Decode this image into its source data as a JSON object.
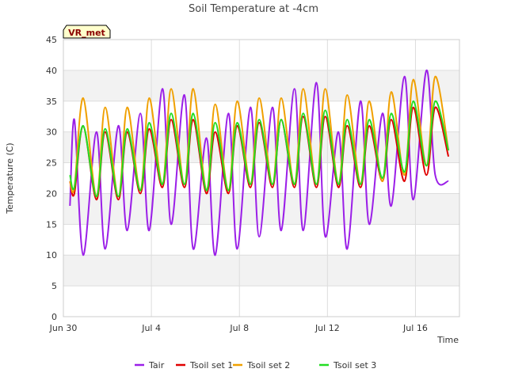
{
  "chart_data": {
    "type": "line",
    "title": "Soil Temperature at -4cm",
    "xlabel": "Time",
    "ylabel": "Temperature (C)",
    "badge": "VR_met",
    "ylim": [
      0,
      45
    ],
    "yticks": [
      0,
      5,
      10,
      15,
      20,
      25,
      30,
      35,
      40,
      45
    ],
    "xlim_days": [
      0,
      18
    ],
    "xticks": [
      {
        "day": 0,
        "label": "Jun 30"
      },
      {
        "day": 4,
        "label": "Jul 4"
      },
      {
        "day": 8,
        "label": "Jul 8"
      },
      {
        "day": 12,
        "label": "Jul 12"
      },
      {
        "day": 16,
        "label": "Jul 16"
      }
    ],
    "grid": true,
    "legend_position": "bottom",
    "series": [
      {
        "name": "Tair",
        "color": "#9b1fe8",
        "days": [
          0.3,
          0.5,
          0.9,
          1.5,
          1.9,
          2.5,
          2.9,
          3.5,
          3.9,
          4.5,
          4.9,
          5.5,
          5.9,
          6.5,
          6.9,
          7.5,
          7.9,
          8.5,
          8.9,
          9.5,
          9.9,
          10.5,
          10.9,
          11.5,
          11.9,
          12.5,
          12.9,
          13.5,
          13.9,
          14.5,
          14.9,
          15.5,
          15.9,
          16.5,
          16.9,
          17.5
        ],
        "values": [
          18,
          32,
          10,
          30,
          11,
          31,
          14,
          33,
          14,
          37,
          15,
          36,
          11,
          29,
          10,
          33,
          11,
          34,
          13,
          34,
          14,
          37,
          14,
          38,
          13,
          30,
          11,
          35,
          15,
          33,
          18,
          39,
          19,
          40,
          23,
          22
        ]
      },
      {
        "name": "Tsoil set 1",
        "color": "#e00000",
        "days": [
          0.3,
          0.5,
          0.9,
          1.5,
          1.9,
          2.5,
          2.9,
          3.5,
          3.9,
          4.5,
          4.9,
          5.5,
          5.9,
          6.5,
          6.9,
          7.5,
          7.9,
          8.5,
          8.9,
          9.5,
          9.9,
          10.5,
          10.9,
          11.5,
          11.9,
          12.5,
          12.9,
          13.5,
          13.9,
          14.5,
          14.9,
          15.5,
          15.9,
          16.5,
          16.9,
          17.5
        ],
        "values": [
          22,
          20,
          31,
          19,
          30,
          19,
          30,
          20,
          30.5,
          21,
          32,
          21,
          32,
          20,
          30,
          20,
          31,
          21,
          31.5,
          21,
          32,
          21,
          32.5,
          21,
          32.5,
          21,
          31,
          21,
          31,
          22,
          32,
          22,
          34,
          23,
          34,
          26
        ]
      },
      {
        "name": "Tsoil set 2",
        "color": "#f0a000",
        "days": [
          0.3,
          0.5,
          0.9,
          1.5,
          1.9,
          2.5,
          2.9,
          3.5,
          3.9,
          4.5,
          4.9,
          5.5,
          5.9,
          6.5,
          6.9,
          7.5,
          7.9,
          8.5,
          8.9,
          9.5,
          9.9,
          10.5,
          10.9,
          11.5,
          11.9,
          12.5,
          12.9,
          13.5,
          13.9,
          14.5,
          14.9,
          15.5,
          15.9,
          16.5,
          16.9,
          17.5
        ],
        "values": [
          22,
          21,
          35.5,
          19.5,
          34,
          19.5,
          34,
          20.5,
          35.5,
          21.5,
          37,
          21.5,
          37,
          20.5,
          34.5,
          20.5,
          35,
          21.5,
          35.5,
          21.5,
          35.5,
          21.5,
          37,
          21.5,
          37,
          21.5,
          36,
          21.5,
          35,
          22,
          36.5,
          23,
          38.5,
          24.5,
          39,
          27
        ]
      },
      {
        "name": "Tsoil set 3",
        "color": "#22dd22",
        "days": [
          0.3,
          0.5,
          0.9,
          1.5,
          1.9,
          2.5,
          2.9,
          3.5,
          3.9,
          4.5,
          4.9,
          5.5,
          5.9,
          6.5,
          6.9,
          7.5,
          7.9,
          8.5,
          8.9,
          9.5,
          9.9,
          10.5,
          10.9,
          11.5,
          11.9,
          12.5,
          12.9,
          13.5,
          13.9,
          14.5,
          14.9,
          15.5,
          15.9,
          16.5,
          16.9,
          17.5
        ],
        "values": [
          23,
          21,
          31,
          19.5,
          30.5,
          19.5,
          30.5,
          20.5,
          31.5,
          21.5,
          33,
          21.5,
          33,
          20.5,
          31.5,
          20.5,
          31.5,
          21.5,
          32,
          21.5,
          32,
          21.5,
          33,
          21.5,
          33.5,
          21.5,
          32,
          21.5,
          32,
          22.5,
          33,
          23.5,
          35,
          24.5,
          35,
          27
        ]
      }
    ]
  }
}
